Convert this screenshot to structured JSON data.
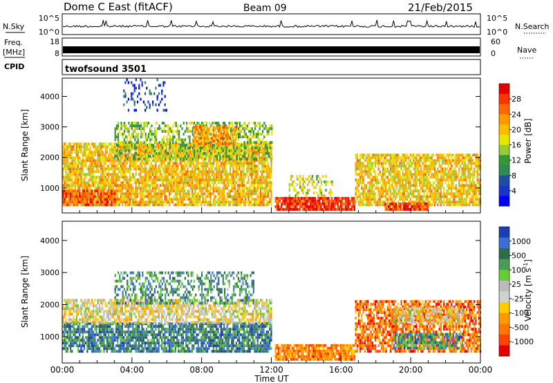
{
  "header": {
    "title": "Dome C East (fitACF)",
    "beam": "Beam 09",
    "date": "21/Feb/2015"
  },
  "nsky_panel": {
    "left_label": "N.Sky",
    "left_ticks": [
      "10^5",
      "10^0"
    ],
    "right_ticks": [
      "10^5",
      "10^0"
    ],
    "right_label": "N.Search"
  },
  "freq_panel": {
    "left_label_1": "Freq.",
    "left_label_2": "[MHz]",
    "left_ticks": [
      "18",
      "8"
    ],
    "right_ticks": [
      "60",
      "0"
    ],
    "right_label": "Nave"
  },
  "cpid_panel": {
    "label": "CPID",
    "mode": "twofsound 3501"
  },
  "chart_data": [
    {
      "type": "heatmap",
      "name": "power",
      "ylabel": "Slant Range [km]",
      "yticks": [
        1000,
        2000,
        3000,
        4000
      ],
      "ylim": [
        180,
        4600
      ],
      "xlim": [
        0,
        24
      ],
      "colorbar": {
        "label": "Power [dB]",
        "ticks": [
          "28",
          "24",
          "20",
          "16",
          "12",
          "8",
          "4"
        ],
        "colors": [
          "#e60000",
          "#ff3300",
          "#ff6600",
          "#ff9900",
          "#ffbb00",
          "#e6e600",
          "#99cc33",
          "#339933",
          "#2e8b57",
          "#1f4e9e",
          "#1a33cc",
          "#0000ff"
        ]
      },
      "regions": [
        {
          "t0": 0.0,
          "t1": 12.0,
          "r0": 400,
          "r1": 2400,
          "density": 0.85,
          "level": 0.62
        },
        {
          "t0": 0.0,
          "t1": 3.0,
          "r0": 400,
          "r1": 900,
          "density": 0.8,
          "level": 0.85
        },
        {
          "t0": 3.0,
          "t1": 12.0,
          "r0": 1900,
          "r1": 3100,
          "density": 0.55,
          "level": 0.45
        },
        {
          "t0": 7.5,
          "t1": 10.0,
          "r0": 2400,
          "r1": 3000,
          "density": 0.75,
          "level": 0.7
        },
        {
          "t0": 12.2,
          "t1": 16.8,
          "r0": 250,
          "r1": 700,
          "density": 0.9,
          "level": 0.9
        },
        {
          "t0": 13.0,
          "t1": 15.5,
          "r0": 700,
          "r1": 1400,
          "density": 0.35,
          "level": 0.55
        },
        {
          "t0": 16.8,
          "t1": 24.0,
          "r0": 400,
          "r1": 2100,
          "density": 0.8,
          "level": 0.6
        },
        {
          "t0": 18.5,
          "t1": 21.0,
          "r0": 250,
          "r1": 500,
          "density": 0.85,
          "level": 0.88
        },
        {
          "t0": 3.5,
          "t1": 6.0,
          "r0": 3500,
          "r1": 4500,
          "density": 0.2,
          "level": 0.15
        }
      ]
    },
    {
      "type": "heatmap",
      "name": "velocity",
      "ylabel": "Slant Range [km]",
      "yticks": [
        1000,
        2000,
        3000,
        4000
      ],
      "ylim": [
        180,
        4600
      ],
      "xlim": [
        0,
        24
      ],
      "colorbar": {
        "label": "Velocity [m s",
        "label_sup": "-1",
        "label_end": "]",
        "ticks": [
          "1000",
          "500",
          "100",
          "25",
          "-25",
          "-100",
          "-500",
          "-1000"
        ],
        "colors": [
          "#1a3fb0",
          "#3a6fd8",
          "#2e6b4a",
          "#4a9a5a",
          "#66cc33",
          "#bbbbbb",
          "#d0d0d0",
          "#ffcc00",
          "#ff9900",
          "#ff7700",
          "#ff4400",
          "#e60000"
        ]
      },
      "regions": [
        {
          "t0": 0.0,
          "t1": 12.0,
          "r0": 500,
          "r1": 1400,
          "density": 0.8,
          "level": 0.8
        },
        {
          "t0": 0.0,
          "t1": 12.0,
          "r0": 1400,
          "r1": 2100,
          "density": 0.7,
          "level": 0.45
        },
        {
          "t0": 3.0,
          "t1": 11.0,
          "r0": 2000,
          "r1": 3000,
          "density": 0.45,
          "level": 0.75
        },
        {
          "t0": 12.2,
          "t1": 16.8,
          "r0": 250,
          "r1": 700,
          "density": 0.9,
          "level": 0.25
        },
        {
          "t0": 16.8,
          "t1": 24.0,
          "r0": 500,
          "r1": 2100,
          "density": 0.75,
          "level": 0.2
        },
        {
          "t0": 19.0,
          "t1": 23.0,
          "r0": 1400,
          "r1": 1900,
          "density": 0.7,
          "level": 0.45
        },
        {
          "t0": 19.0,
          "t1": 23.0,
          "r0": 600,
          "r1": 1100,
          "density": 0.7,
          "level": 0.75
        }
      ]
    }
  ],
  "xaxis": {
    "label": "Time UT",
    "ticks": [
      "00:00",
      "04:00",
      "08:00",
      "12:00",
      "16:00",
      "20:00",
      "00:00"
    ],
    "tick_hours": [
      0,
      4,
      8,
      12,
      16,
      20,
      24
    ]
  }
}
